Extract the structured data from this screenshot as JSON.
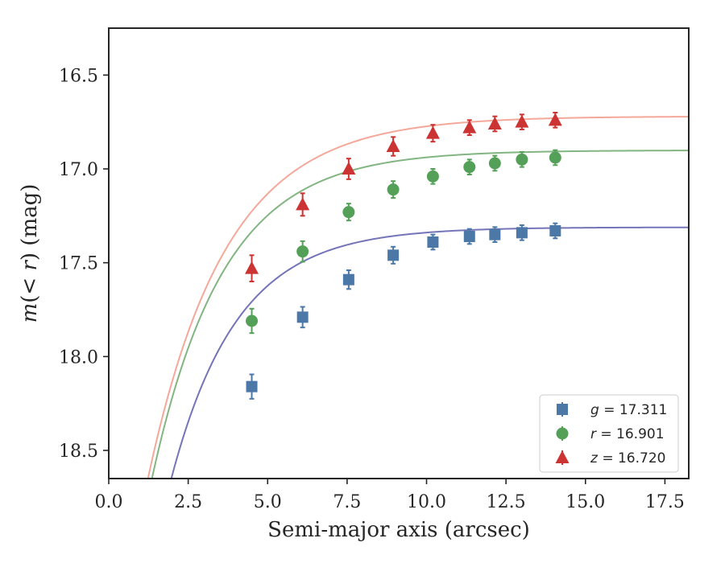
{
  "chart_data": {
    "type": "scatter",
    "title": "",
    "xlabel": "Semi-major axis (arcsec)",
    "ylabel": "m(< r) (mag)",
    "ylabel_parts": {
      "var": "m",
      "paren_open": "(",
      "cmp": "< ",
      "rvar": "r",
      "paren_close": ")",
      "unit": " (mag)"
    },
    "xlim": [
      0.0,
      18.25
    ],
    "ylim": [
      18.65,
      16.25
    ],
    "y_inverted": true,
    "xticks": [
      "0.0",
      "2.5",
      "5.0",
      "7.5",
      "10.0",
      "12.5",
      "15.0",
      "17.5"
    ],
    "xtick_values": [
      0.0,
      2.5,
      5.0,
      7.5,
      10.0,
      12.5,
      15.0,
      17.5
    ],
    "yticks": [
      "16.5",
      "17.0",
      "17.5",
      "18.0",
      "18.5"
    ],
    "ytick_values": [
      16.5,
      17.0,
      17.5,
      18.0,
      18.5
    ],
    "grid": false,
    "legend_position": "bottom-right",
    "x": [
      4.5,
      6.1,
      7.55,
      8.95,
      10.2,
      11.35,
      12.15,
      13.0,
      14.05
    ],
    "series": [
      {
        "name": "g = 17.311",
        "legend_var": "g",
        "legend_value": "17.311",
        "marker": "square",
        "color": "#4c78a8",
        "curve_color": "#7474b8",
        "values": [
          18.16,
          17.79,
          17.59,
          17.46,
          17.39,
          17.36,
          17.35,
          17.34,
          17.33
        ],
        "errors": [
          0.065,
          0.055,
          0.05,
          0.045,
          0.04,
          0.04,
          0.04,
          0.04,
          0.04
        ],
        "model": {
          "m_inf": 17.311,
          "amplitude": 3.45,
          "scale": 2.08
        }
      },
      {
        "name": "r = 16.901",
        "legend_var": "r",
        "legend_value": "16.901",
        "marker": "circle",
        "color": "#55a058",
        "curve_color": "#82b582",
        "values": [
          17.81,
          17.44,
          17.23,
          17.11,
          17.04,
          16.99,
          16.97,
          16.95,
          16.94
        ],
        "errors": [
          0.065,
          0.055,
          0.045,
          0.045,
          0.04,
          0.04,
          0.04,
          0.04,
          0.04
        ],
        "model": {
          "m_inf": 16.901,
          "amplitude": 3.2,
          "scale": 2.25
        }
      },
      {
        "name": "z = 16.720",
        "legend_var": "z",
        "legend_value": "16.720",
        "marker": "triangle",
        "color": "#cc3333",
        "curve_color": "#f4a89a",
        "values": [
          17.53,
          17.19,
          17.0,
          16.88,
          16.81,
          16.78,
          16.76,
          16.75,
          16.74
        ],
        "errors": [
          0.07,
          0.06,
          0.055,
          0.05,
          0.045,
          0.04,
          0.04,
          0.04,
          0.04
        ],
        "model": {
          "m_inf": 16.72,
          "amplitude": 3.2,
          "scale": 2.44
        }
      }
    ]
  }
}
